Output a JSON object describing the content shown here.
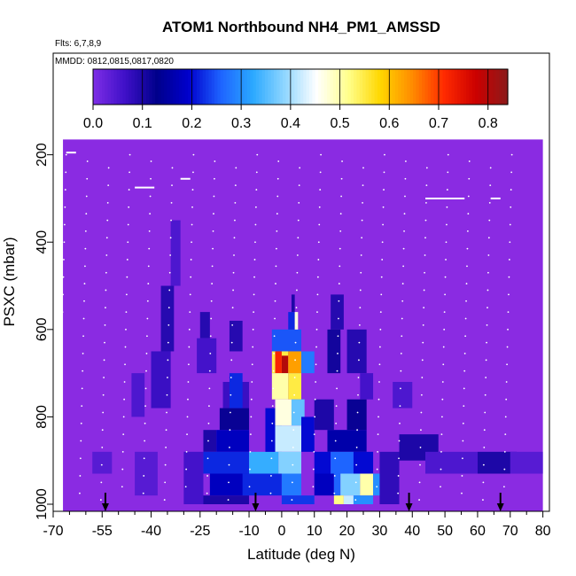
{
  "colors": {
    "background": "#ffffff",
    "axis": "#000000",
    "bg_fill": "#8a2be2",
    "colormap": [
      "#7e2ee6",
      "#3f10c8",
      "#00008b",
      "#0000cd",
      "#1e63ff",
      "#2aa8ff",
      "#8fd6ff",
      "#ffffff",
      "#ffff8c",
      "#ffd700",
      "#ff8c00",
      "#ff2a00",
      "#cc0000",
      "#8b1a1a"
    ]
  },
  "chart_data": {
    "type": "heatmap",
    "title": "ATOM1 Northbound NH4_PM1_AMSSD",
    "flights_label": "Flts: 6,7,8,9",
    "dates_label": "MMDD: 0812,0815,0817,0820",
    "xlabel": "Latitude (deg N)",
    "ylabel": "PSXC (mbar)",
    "xlim": [
      -70,
      82
    ],
    "ylim": [
      1000,
      150
    ],
    "y_inverted": true,
    "x_ticks": [
      -70,
      -55,
      -40,
      -25,
      -10,
      0,
      10,
      20,
      30,
      40,
      50,
      60,
      70,
      80
    ],
    "x_tick_labels": [
      "-70",
      "-55",
      "-40",
      "-25",
      "-10",
      "0",
      "10",
      "20",
      "30",
      "40",
      "50",
      "60",
      "70",
      "80"
    ],
    "y_ticks": [
      200,
      400,
      600,
      800,
      1000
    ],
    "y_tick_labels": [
      "200",
      "400",
      "600",
      "800",
      "1000"
    ],
    "colorbar": {
      "min": 0.0,
      "max": 0.84,
      "ticks": [
        0.0,
        0.1,
        0.2,
        0.3,
        0.4,
        0.5,
        0.6,
        0.7,
        0.8
      ],
      "tick_labels": [
        "0.0",
        "0.1",
        "0.2",
        "0.3",
        "0.4",
        "0.5",
        "0.6",
        "0.7",
        "0.8"
      ]
    },
    "data_extent": {
      "lat": [
        -67,
        80
      ],
      "p_top": 165,
      "p_bottom": 1000
    },
    "cells": [
      {
        "lat": [
          -34,
          -31
        ],
        "p": [
          350,
          500
        ],
        "v": 0.05
      },
      {
        "lat": [
          -37,
          -33
        ],
        "p": [
          500,
          650
        ],
        "v": 0.09
      },
      {
        "lat": [
          -40,
          -34
        ],
        "p": [
          650,
          780
        ],
        "v": 0.07
      },
      {
        "lat": [
          -46,
          -42
        ],
        "p": [
          700,
          800
        ],
        "v": 0.05
      },
      {
        "lat": [
          -25,
          -22
        ],
        "p": [
          560,
          620
        ],
        "v": 0.09
      },
      {
        "lat": [
          -26,
          -20
        ],
        "p": [
          620,
          700
        ],
        "v": 0.06
      },
      {
        "lat": [
          -16,
          -12
        ],
        "p": [
          580,
          650
        ],
        "v": 0.09
      },
      {
        "lat": [
          -18,
          -10
        ],
        "p": [
          720,
          780
        ],
        "v": 0.07
      },
      {
        "lat": [
          -19,
          -10
        ],
        "p": [
          780,
          830
        ],
        "v": 0.12
      },
      {
        "lat": [
          -24,
          -20
        ],
        "p": [
          830,
          880
        ],
        "v": 0.1
      },
      {
        "lat": [
          -20,
          -10
        ],
        "p": [
          830,
          880
        ],
        "v": 0.18
      },
      {
        "lat": [
          -16,
          -12
        ],
        "p": [
          700,
          780
        ],
        "v": 0.22
      },
      {
        "lat": [
          -24,
          -10
        ],
        "p": [
          880,
          930
        ],
        "v": 0.22
      },
      {
        "lat": [
          -22,
          -10
        ],
        "p": [
          930,
          980
        ],
        "v": 0.18
      },
      {
        "lat": [
          -26,
          -10
        ],
        "p": [
          980,
          1000
        ],
        "v": 0.1
      },
      {
        "lat": [
          -30,
          -24
        ],
        "p": [
          880,
          1000
        ],
        "v": 0.06
      },
      {
        "lat": [
          -10,
          -1
        ],
        "p": [
          880,
          930
        ],
        "v": 0.33
      },
      {
        "lat": [
          -12,
          0
        ],
        "p": [
          930,
          980
        ],
        "v": 0.22
      },
      {
        "lat": [
          -5,
          0
        ],
        "p": [
          780,
          880
        ],
        "v": 0.2
      },
      {
        "lat": [
          -3,
          6
        ],
        "p": [
          600,
          650
        ],
        "v": 0.25
      },
      {
        "lat": [
          -3,
          2
        ],
        "p": [
          650,
          700
        ],
        "v": 0.55
      },
      {
        "lat": [
          -2,
          0
        ],
        "p": [
          650,
          700
        ],
        "v": 0.72
      },
      {
        "lat": [
          0,
          2
        ],
        "p": [
          660,
          700
        ],
        "v": 0.8
      },
      {
        "lat": [
          2,
          6
        ],
        "p": [
          650,
          700
        ],
        "v": 0.63
      },
      {
        "lat": [
          6,
          10
        ],
        "p": [
          650,
          700
        ],
        "v": 0.28
      },
      {
        "lat": [
          -3,
          2
        ],
        "p": [
          700,
          760
        ],
        "v": 0.5
      },
      {
        "lat": [
          2,
          6
        ],
        "p": [
          700,
          760
        ],
        "v": 0.55
      },
      {
        "lat": [
          -2,
          3
        ],
        "p": [
          760,
          820
        ],
        "v": 0.47
      },
      {
        "lat": [
          3,
          7
        ],
        "p": [
          760,
          820
        ],
        "v": 0.36
      },
      {
        "lat": [
          -2,
          6
        ],
        "p": [
          820,
          880
        ],
        "v": 0.42
      },
      {
        "lat": [
          6,
          10
        ],
        "p": [
          800,
          880
        ],
        "v": 0.2
      },
      {
        "lat": [
          -1,
          6
        ],
        "p": [
          880,
          930
        ],
        "v": 0.38
      },
      {
        "lat": [
          0,
          6
        ],
        "p": [
          930,
          980
        ],
        "v": 0.28
      },
      {
        "lat": [
          0,
          10
        ],
        "p": [
          980,
          1000
        ],
        "v": 0.23
      },
      {
        "lat": [
          2,
          4
        ],
        "p": [
          560,
          600
        ],
        "v": 0.22
      },
      {
        "lat": [
          3,
          4
        ],
        "p": [
          520,
          560
        ],
        "v": 0.1
      },
      {
        "lat": [
          4,
          5
        ],
        "p": [
          560,
          600
        ],
        "v": 0.47
      },
      {
        "lat": [
          15,
          19
        ],
        "p": [
          520,
          600
        ],
        "v": 0.09
      },
      {
        "lat": [
          14,
          18
        ],
        "p": [
          600,
          700
        ],
        "v": 0.11
      },
      {
        "lat": [
          20,
          26
        ],
        "p": [
          600,
          700
        ],
        "v": 0.09
      },
      {
        "lat": [
          24,
          28
        ],
        "p": [
          700,
          760
        ],
        "v": 0.06
      },
      {
        "lat": [
          20,
          26
        ],
        "p": [
          760,
          830
        ],
        "v": 0.12
      },
      {
        "lat": [
          10,
          16
        ],
        "p": [
          760,
          830
        ],
        "v": 0.1
      },
      {
        "lat": [
          14,
          26
        ],
        "p": [
          830,
          880
        ],
        "v": 0.16
      },
      {
        "lat": [
          10,
          15
        ],
        "p": [
          880,
          930
        ],
        "v": 0.2
      },
      {
        "lat": [
          15,
          22
        ],
        "p": [
          880,
          930
        ],
        "v": 0.26
      },
      {
        "lat": [
          22,
          28
        ],
        "p": [
          880,
          930
        ],
        "v": 0.2
      },
      {
        "lat": [
          10,
          16
        ],
        "p": [
          930,
          980
        ],
        "v": 0.18
      },
      {
        "lat": [
          16,
          18
        ],
        "p": [
          930,
          980
        ],
        "v": 0.26
      },
      {
        "lat": [
          18,
          24
        ],
        "p": [
          930,
          980
        ],
        "v": 0.38
      },
      {
        "lat": [
          24,
          28
        ],
        "p": [
          930,
          980
        ],
        "v": 0.5
      },
      {
        "lat": [
          28,
          32
        ],
        "p": [
          930,
          980
        ],
        "v": 0.3
      },
      {
        "lat": [
          16,
          19
        ],
        "p": [
          980,
          1000
        ],
        "v": 0.52
      },
      {
        "lat": [
          19,
          22
        ],
        "p": [
          980,
          1000
        ],
        "v": 0.42
      },
      {
        "lat": [
          22,
          28
        ],
        "p": [
          980,
          1000
        ],
        "v": 0.3
      },
      {
        "lat": [
          30,
          36
        ],
        "p": [
          880,
          1000
        ],
        "v": 0.08
      },
      {
        "lat": [
          36,
          48
        ],
        "p": [
          840,
          900
        ],
        "v": 0.1
      },
      {
        "lat": [
          44,
          60
        ],
        "p": [
          880,
          930
        ],
        "v": 0.05
      },
      {
        "lat": [
          60,
          72
        ],
        "p": [
          880,
          930
        ],
        "v": 0.1
      },
      {
        "lat": [
          34,
          40
        ],
        "p": [
          720,
          780
        ],
        "v": 0.05
      },
      {
        "lat": [
          -58,
          -52
        ],
        "p": [
          880,
          930
        ],
        "v": 0.04
      },
      {
        "lat": [
          -45,
          -38
        ],
        "p": [
          880,
          980
        ],
        "v": 0.04
      },
      {
        "lat": [
          70,
          80
        ],
        "p": [
          880,
          930
        ],
        "v": 0.04
      }
    ],
    "arrows_lat": [
      -54,
      -8,
      39,
      67
    ],
    "horizontal_segments": [
      {
        "lat": [
          -45,
          -39
        ],
        "p": 275
      },
      {
        "lat": [
          -31,
          -28
        ],
        "p": 255
      },
      {
        "lat": [
          -66,
          -63
        ],
        "p": 195
      },
      {
        "lat": [
          44,
          56
        ],
        "p": 300
      },
      {
        "lat": [
          64,
          67
        ],
        "p": 300
      }
    ]
  }
}
